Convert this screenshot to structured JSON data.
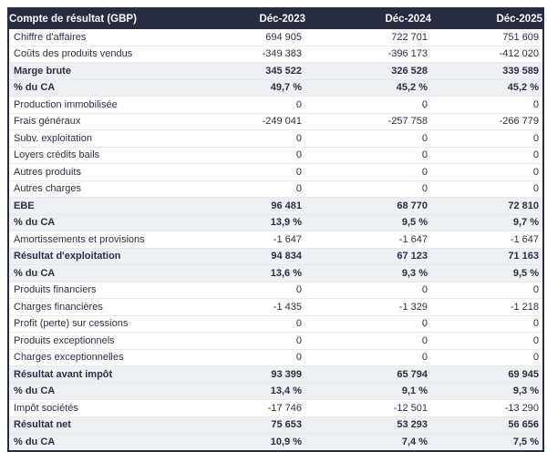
{
  "table": {
    "title": "Compte de résultat (GBP)",
    "columns": [
      "Déc-2023",
      "Déc-2024",
      "Déc-2025"
    ],
    "colors": {
      "header_bg": "#272c43",
      "header_text": "#ffffff",
      "highlight_row_bg": "#edf1f5",
      "body_text": "#2b3044",
      "outer_border": "#272c43",
      "row_divider": "#e7eaed"
    },
    "rows": [
      {
        "label": "Chiffre d'affaires",
        "values": [
          "694 905",
          "722 701",
          "751 609"
        ],
        "style": "normal"
      },
      {
        "label": "Coûts des produits vendus",
        "values": [
          "-349 383",
          "-396 173",
          "-412 020"
        ],
        "style": "normal"
      },
      {
        "label": "Marge brute",
        "values": [
          "345 522",
          "326 528",
          "339 589"
        ],
        "style": "highlight"
      },
      {
        "label": "% du CA",
        "values": [
          "49,7 %",
          "45,2 %",
          "45,2 %"
        ],
        "style": "highlight"
      },
      {
        "label": "Production immobilisée",
        "values": [
          "0",
          "0",
          "0"
        ],
        "style": "normal"
      },
      {
        "label": "Frais généraux",
        "values": [
          "-249 041",
          "-257 758",
          "-266 779"
        ],
        "style": "normal"
      },
      {
        "label": "Subv. exploitation",
        "values": [
          "0",
          "0",
          "0"
        ],
        "style": "normal"
      },
      {
        "label": "Loyers crédits bails",
        "values": [
          "0",
          "0",
          "0"
        ],
        "style": "normal"
      },
      {
        "label": "Autres produits",
        "values": [
          "0",
          "0",
          "0"
        ],
        "style": "normal"
      },
      {
        "label": "Autres charges",
        "values": [
          "0",
          "0",
          "0"
        ],
        "style": "normal"
      },
      {
        "label": "EBE",
        "values": [
          "96 481",
          "68 770",
          "72 810"
        ],
        "style": "highlight"
      },
      {
        "label": "% du CA",
        "values": [
          "13,9 %",
          "9,5 %",
          "9,7 %"
        ],
        "style": "highlight"
      },
      {
        "label": "Amortissements et provisions",
        "values": [
          "-1 647",
          "-1 647",
          "-1 647"
        ],
        "style": "normal"
      },
      {
        "label": "Résultat d'exploitation",
        "values": [
          "94 834",
          "67 123",
          "71 163"
        ],
        "style": "highlight"
      },
      {
        "label": "% du CA",
        "values": [
          "13,6 %",
          "9,3 %",
          "9,5 %"
        ],
        "style": "highlight"
      },
      {
        "label": "Produits financiers",
        "values": [
          "0",
          "0",
          "0"
        ],
        "style": "normal"
      },
      {
        "label": "Charges financières",
        "values": [
          "-1 435",
          "-1 329",
          "-1 218"
        ],
        "style": "normal"
      },
      {
        "label": "Profit (perte) sur cessions",
        "values": [
          "0",
          "0",
          "0"
        ],
        "style": "normal"
      },
      {
        "label": "Produits exceptionnels",
        "values": [
          "0",
          "0",
          "0"
        ],
        "style": "normal"
      },
      {
        "label": "Charges exceptionnelles",
        "values": [
          "0",
          "0",
          "0"
        ],
        "style": "normal"
      },
      {
        "label": "Résultat avant impôt",
        "values": [
          "93 399",
          "65 794",
          "69 945"
        ],
        "style": "highlight"
      },
      {
        "label": "% du CA",
        "values": [
          "13,4 %",
          "9,1 %",
          "9,3 %"
        ],
        "style": "highlight"
      },
      {
        "label": "Impôt sociétés",
        "values": [
          "-17 746",
          "-12 501",
          "-13 290"
        ],
        "style": "normal"
      },
      {
        "label": "Résultat net",
        "values": [
          "75 653",
          "53 293",
          "56 656"
        ],
        "style": "highlight"
      },
      {
        "label": "% du CA",
        "values": [
          "10,9 %",
          "7,4 %",
          "7,5 %"
        ],
        "style": "highlight"
      }
    ]
  }
}
